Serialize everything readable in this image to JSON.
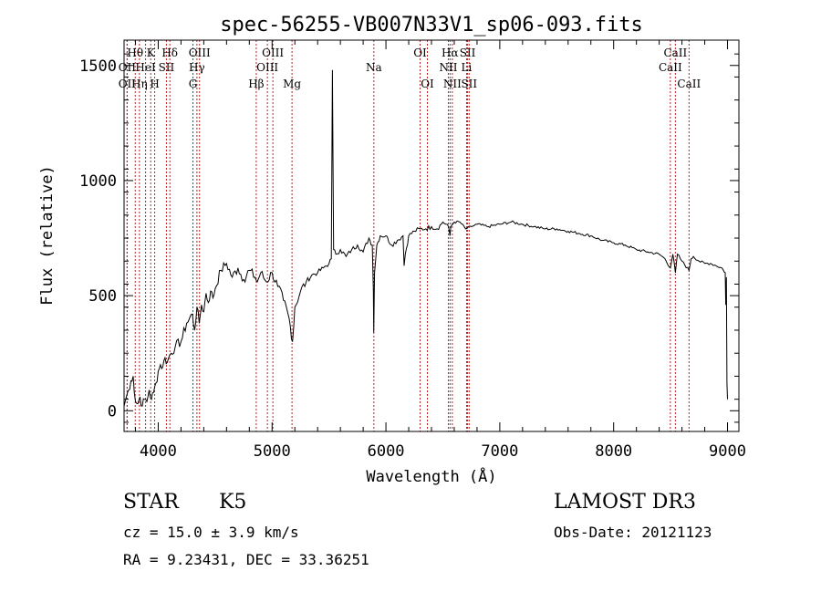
{
  "chart_data": {
    "type": "line",
    "title": "spec-56255-VB007N33V1_sp06-093.fits",
    "xlabel": "Wavelength (Å)",
    "ylabel": "Flux (relative)",
    "xlim": [
      3700,
      9100
    ],
    "ylim": [
      -90,
      1610
    ],
    "xticks": [
      4000,
      5000,
      6000,
      7000,
      8000,
      9000
    ],
    "yticks": [
      0,
      500,
      1000,
      1500
    ],
    "series": [
      {
        "name": "flux",
        "x": [
          3700,
          3720,
          3740,
          3760,
          3780,
          3790,
          3800,
          3820,
          3840,
          3860,
          3880,
          3900,
          3920,
          3940,
          3960,
          3980,
          4000,
          4020,
          4040,
          4060,
          4080,
          4100,
          4150,
          4200,
          4250,
          4300,
          4320,
          4340,
          4360,
          4380,
          4400,
          4420,
          4440,
          4460,
          4480,
          4500,
          4550,
          4600,
          4650,
          4700,
          4750,
          4800,
          4850,
          4870,
          4900,
          4950,
          5000,
          5050,
          5100,
          5150,
          5180,
          5200,
          5250,
          5300,
          5350,
          5400,
          5450,
          5500,
          5520,
          5530,
          5540,
          5560,
          5600,
          5650,
          5700,
          5750,
          5800,
          5850,
          5880,
          5890,
          5893,
          5900,
          5920,
          5950,
          6000,
          6050,
          6100,
          6150,
          6160,
          6170,
          6200,
          6250,
          6300,
          6350,
          6400,
          6450,
          6500,
          6550,
          6563,
          6570,
          6600,
          6650,
          6700,
          6750,
          6800,
          6900,
          7000,
          7100,
          7200,
          7300,
          7400,
          7500,
          7600,
          7700,
          7800,
          7900,
          8000,
          8100,
          8200,
          8300,
          8400,
          8450,
          8498,
          8520,
          8542,
          8560,
          8600,
          8662,
          8680,
          8700,
          8750,
          8800,
          8850,
          8900,
          8950,
          8980,
          8985,
          8990,
          8995,
          9000
        ],
        "y": [
          20,
          60,
          90,
          130,
          150,
          80,
          40,
          30,
          60,
          20,
          50,
          40,
          90,
          50,
          80,
          120,
          170,
          200,
          190,
          230,
          210,
          240,
          280,
          300,
          380,
          420,
          350,
          450,
          380,
          460,
          430,
          510,
          470,
          520,
          490,
          530,
          610,
          640,
          580,
          620,
          570,
          610,
          580,
          560,
          600,
          560,
          600,
          540,
          480,
          400,
          300,
          450,
          520,
          560,
          590,
          600,
          620,
          640,
          660,
          1480,
          700,
          680,
          700,
          670,
          700,
          720,
          690,
          750,
          720,
          520,
          340,
          600,
          720,
          760,
          760,
          720,
          740,
          760,
          630,
          680,
          760,
          780,
          790,
          790,
          800,
          790,
          820,
          800,
          760,
          800,
          820,
          820,
          790,
          800,
          810,
          800,
          810,
          820,
          810,
          800,
          790,
          790,
          780,
          770,
          760,
          740,
          730,
          720,
          700,
          690,
          680,
          660,
          620,
          680,
          600,
          680,
          650,
          610,
          660,
          670,
          650,
          640,
          640,
          630,
          620,
          600,
          460,
          580,
          120,
          50
        ]
      }
    ],
    "lines": [
      {
        "label": "Hθ",
        "wavelength": 3798,
        "row": 1
      },
      {
        "label": "OII",
        "wavelength": 3727,
        "row": 2
      },
      {
        "label": "OII",
        "wavelength": 3727,
        "row": 3
      },
      {
        "label": "Hη",
        "wavelength": 3835,
        "row": 3
      },
      {
        "label": "HeI",
        "wavelength": 3889,
        "row": 2
      },
      {
        "label": "K",
        "wavelength": 3934,
        "row": 1
      },
      {
        "label": "H",
        "wavelength": 3969,
        "row": 3
      },
      {
        "label": "Hδ",
        "wavelength": 4102,
        "row": 1
      },
      {
        "label": "SII",
        "wavelength": 4072,
        "row": 2
      },
      {
        "label": "OIII",
        "wavelength": 4363,
        "row": 1
      },
      {
        "label": "Hγ",
        "wavelength": 4340,
        "row": 2
      },
      {
        "label": "G",
        "wavelength": 4305,
        "row": 3
      },
      {
        "label": "OIII",
        "wavelength": 5007,
        "row": 1
      },
      {
        "label": "OIII",
        "wavelength": 4959,
        "row": 2
      },
      {
        "label": "Hβ",
        "wavelength": 4861,
        "row": 3
      },
      {
        "label": "Mg",
        "wavelength": 5175,
        "row": 3
      },
      {
        "label": "Na",
        "wavelength": 5894,
        "row": 2
      },
      {
        "label": "OI",
        "wavelength": 6300,
        "row": 1
      },
      {
        "label": "OI",
        "wavelength": 6364,
        "row": 3
      },
      {
        "label": "Hα",
        "wavelength": 6563,
        "row": 1
      },
      {
        "label": "NII",
        "wavelength": 6548,
        "row": 2
      },
      {
        "label": "NII",
        "wavelength": 6583,
        "row": 3
      },
      {
        "label": "SII",
        "wavelength": 6717,
        "row": 1
      },
      {
        "label": "Li",
        "wavelength": 6708,
        "row": 2
      },
      {
        "label": "SII",
        "wavelength": 6731,
        "row": 3
      },
      {
        "label": "CaII",
        "wavelength": 8542,
        "row": 1
      },
      {
        "label": "CaII",
        "wavelength": 8498,
        "row": 2
      },
      {
        "label": "CaII",
        "wavelength": 8662,
        "row": 3
      }
    ],
    "colors": {
      "spectrum": "#000000",
      "line_marker": "#b22222",
      "axis": "#000000"
    }
  },
  "info": {
    "object_class": "STAR",
    "subclass": "K5",
    "survey": "LAMOST DR3",
    "redshift": "cz = 15.0 ± 3.9 km/s",
    "obs_date": "Obs-Date: 20121123",
    "coordinates": "RA =   9.23431, DEC =  33.36251"
  }
}
